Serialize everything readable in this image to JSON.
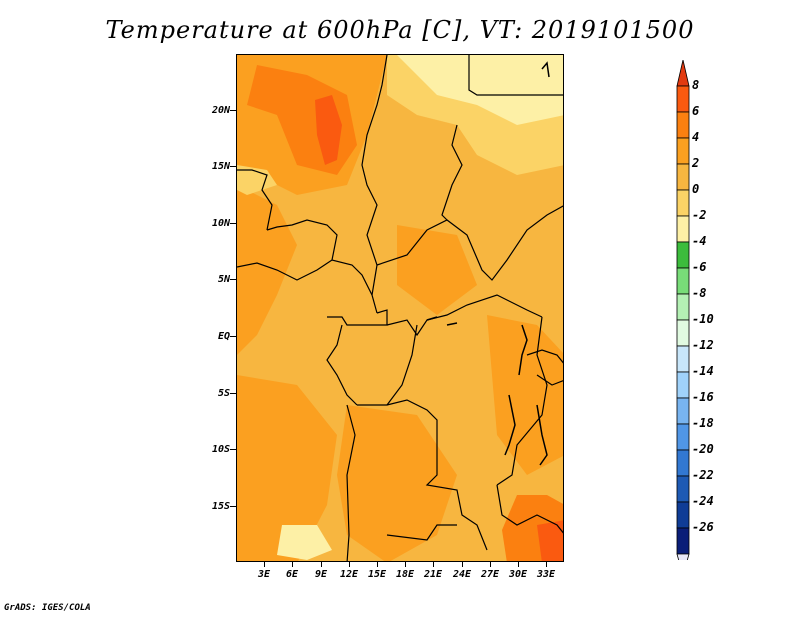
{
  "title": "Temperature at 600hPa [C], VT: 2019101500",
  "footer": "GrADS: IGES/COLA",
  "lat_labels": [
    "20N",
    "15N",
    "10N",
    "5N",
    "EQ",
    "5S",
    "10S",
    "15S"
  ],
  "lon_labels": [
    "3E",
    "6E",
    "9E",
    "12E",
    "15E",
    "18E",
    "21E",
    "24E",
    "27E",
    "30E",
    "33E"
  ],
  "colorbar": {
    "labels": [
      "8",
      "6",
      "4",
      "2",
      "0",
      "-2",
      "-4",
      "-6",
      "-8",
      "-10",
      "-12",
      "-14",
      "-16",
      "-18",
      "-20",
      "-22",
      "-24",
      "-26"
    ],
    "colors": [
      "#e23a10",
      "#fa5a10",
      "#fb8010",
      "#fba020",
      "#f7b640",
      "#fbd366",
      "#fdf0a6",
      "#3cbc3c",
      "#78dc78",
      "#b4f0b4",
      "#e1fae1",
      "#c8e6fa",
      "#a0d2fa",
      "#78b4f0",
      "#5096e6",
      "#3278d2",
      "#1e5ab4",
      "#0f3c96",
      "#0a1e78",
      "#e8e8f8"
    ]
  },
  "map_fill_colors": {
    "base": "#f7b640",
    "warm": "#fba020",
    "hot": "#fb8010",
    "hotter": "#fa5a10",
    "cool": "#fbd366",
    "cooler": "#fdf0a6"
  }
}
